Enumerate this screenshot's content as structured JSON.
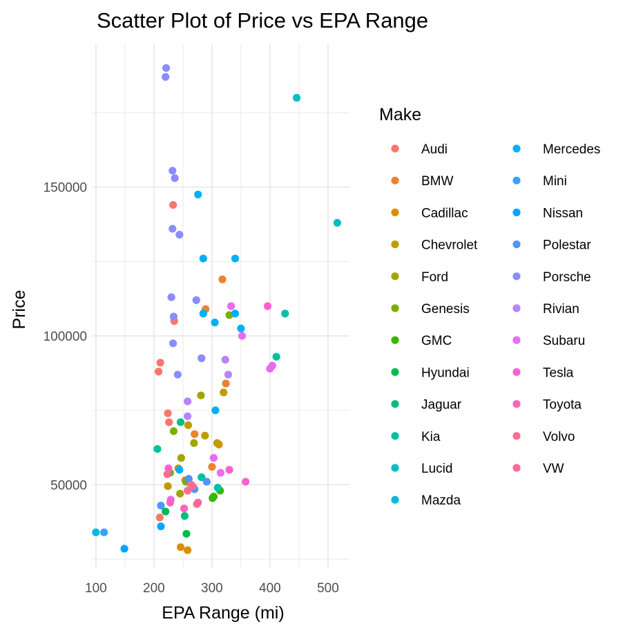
{
  "chart_data": {
    "type": "scatter",
    "title": "Scatter Plot of Price vs EPA Range",
    "xlabel": "EPA Range (mi)",
    "ylabel": "Price",
    "xlim": [
      93,
      537
    ],
    "ylim": [
      22000,
      198000
    ],
    "x_ticks": [
      100,
      200,
      300,
      400,
      500
    ],
    "y_ticks": [
      50000,
      100000,
      150000
    ],
    "x_minor": [
      150,
      250,
      350,
      450
    ],
    "y_minor": [
      25000,
      75000,
      125000,
      175000
    ],
    "grid": true,
    "legend_title": "Make",
    "legend_position": "right",
    "series": [
      {
        "name": "Audi",
        "color": "#F8766D",
        "points": [
          [
            233,
            144000
          ],
          [
            208,
            88000
          ],
          [
            211,
            91000
          ],
          [
            224,
            74000
          ],
          [
            226,
            71000
          ],
          [
            235,
            105000
          ],
          [
            210,
            39000
          ]
        ]
      },
      {
        "name": "BMW",
        "color": "#EA8331",
        "points": [
          [
            318,
            119000
          ],
          [
            289,
            109000
          ],
          [
            324,
            84000
          ],
          [
            270,
            67000
          ],
          [
            300,
            56000
          ],
          [
            254,
            51500
          ]
        ]
      },
      {
        "name": "Cadillac",
        "color": "#D89000",
        "points": [
          [
            312,
            63500
          ],
          [
            246,
            29000
          ],
          [
            258,
            28000
          ]
        ]
      },
      {
        "name": "Chevrolet",
        "color": "#C09B00",
        "points": [
          [
            320,
            81000
          ],
          [
            309,
            64000
          ],
          [
            288,
            66500
          ],
          [
            259,
            70000
          ],
          [
            242,
            55500
          ],
          [
            224,
            49500
          ]
        ]
      },
      {
        "name": "Ford",
        "color": "#A3A500",
        "points": [
          [
            269,
            64000
          ],
          [
            247,
            59000
          ],
          [
            245,
            47000
          ],
          [
            281,
            80000
          ]
        ]
      },
      {
        "name": "Genesis",
        "color": "#7CAE00",
        "points": [
          [
            234,
            68000
          ],
          [
            330,
            107000
          ],
          [
            255,
            51000
          ],
          [
            228,
            54000
          ]
        ]
      },
      {
        "name": "GMC",
        "color": "#39B600",
        "points": [
          [
            303,
            46000
          ],
          [
            301,
            45500
          ],
          [
            314,
            48000
          ]
        ]
      },
      {
        "name": "Hyundai",
        "color": "#00BB4E",
        "points": [
          [
            256,
            33500
          ],
          [
            220,
            41000
          ]
        ]
      },
      {
        "name": "Jaguar",
        "color": "#00BF7D",
        "points": [
          [
            246,
            71000
          ],
          [
            253,
            39500
          ]
        ]
      },
      {
        "name": "Kia",
        "color": "#00C1A3",
        "points": [
          [
            206,
            62000
          ],
          [
            282,
            52500
          ],
          [
            310,
            49000
          ],
          [
            411,
            93000
          ],
          [
            426,
            107500
          ]
        ]
      },
      {
        "name": "Lucid",
        "color": "#00BFC4",
        "points": [
          [
            446,
            180000
          ],
          [
            516,
            138000
          ]
        ]
      },
      {
        "name": "Mazda",
        "color": "#00BAE0",
        "points": [
          [
            100,
            34000
          ]
        ]
      },
      {
        "name": "Mercedes",
        "color": "#00B0F6",
        "points": [
          [
            276,
            147500
          ],
          [
            285,
            126000
          ],
          [
            340,
            126000
          ],
          [
            305,
            104500
          ],
          [
            340,
            107500
          ],
          [
            285,
            107500
          ],
          [
            350,
            102500
          ],
          [
            306,
            75000
          ],
          [
            244,
            55000
          ]
        ]
      },
      {
        "name": "Mini",
        "color": "#35A2FF",
        "points": [
          [
            114,
            34000
          ]
        ]
      },
      {
        "name": "Nissan",
        "color": "#00A5FF",
        "points": [
          [
            149,
            28500
          ],
          [
            212,
            36000
          ]
        ]
      },
      {
        "name": "Polestar",
        "color": "#4F95FF",
        "points": [
          [
            260,
            52000
          ],
          [
            270,
            48500
          ],
          [
            291,
            51000
          ],
          [
            212,
            43000
          ]
        ]
      },
      {
        "name": "Porsche",
        "color": "#8C8BFF",
        "points": [
          [
            221,
            190000
          ],
          [
            220,
            187000
          ],
          [
            232,
            155500
          ],
          [
            236,
            153000
          ],
          [
            232,
            136000
          ],
          [
            244,
            134000
          ],
          [
            230,
            113000
          ],
          [
            273,
            112000
          ],
          [
            234,
            106500
          ],
          [
            233,
            97500
          ],
          [
            282,
            92500
          ],
          [
            241,
            87000
          ]
        ]
      },
      {
        "name": "Rivian",
        "color": "#B983FF",
        "points": [
          [
            258,
            78000
          ],
          [
            258,
            73000
          ],
          [
            323,
            92000
          ],
          [
            328,
            87000
          ]
        ]
      },
      {
        "name": "Subaru",
        "color": "#E76BF3",
        "points": [
          [
            333,
            110000
          ],
          [
            352,
            100000
          ],
          [
            404,
            90000
          ],
          [
            400,
            89000
          ],
          [
            303,
            59000
          ],
          [
            315,
            54000
          ],
          [
            229,
            45000
          ]
        ]
      },
      {
        "name": "Tesla",
        "color": "#FD61D1",
        "points": [
          [
            396,
            110000
          ],
          [
            358,
            51000
          ],
          [
            330,
            55000
          ],
          [
            225,
            55500
          ]
        ]
      },
      {
        "name": "Toyota",
        "color": "#FF62BC",
        "points": [
          [
            252,
            42000
          ],
          [
            228,
            44000
          ],
          [
            276,
            44000
          ]
        ]
      },
      {
        "name": "Volvo",
        "color": "#FF6C91",
        "points": [
          [
            223,
            53500
          ],
          [
            258,
            48000
          ],
          [
            274,
            43500
          ],
          [
            267,
            49500
          ]
        ]
      },
      {
        "name": "VW",
        "color": "#FF6C91",
        "points": [
          [
            264,
            50000
          ]
        ]
      }
    ]
  }
}
